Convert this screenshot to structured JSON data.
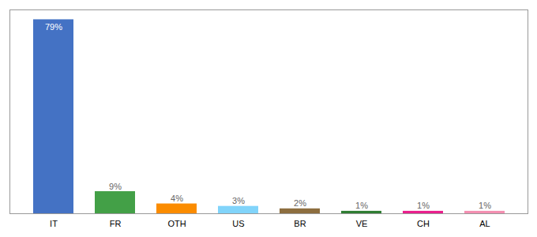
{
  "chart_data": {
    "type": "bar",
    "categories": [
      "IT",
      "FR",
      "OTH",
      "US",
      "BR",
      "VE",
      "CH",
      "AL"
    ],
    "values": [
      79,
      9,
      4,
      3,
      2,
      1,
      1,
      1
    ],
    "value_labels": [
      "79%",
      "9%",
      "4%",
      "3%",
      "2%",
      "1%",
      "1%",
      "1%"
    ],
    "colors": [
      "#4472c4",
      "#43a047",
      "#fb8c00",
      "#81d4fa",
      "#8d6e3f",
      "#2e7d32",
      "#e91e8c",
      "#f48fb1"
    ],
    "ylim": [
      0,
      83
    ],
    "data_labels": true,
    "tick_labels": "x",
    "grid": false
  }
}
